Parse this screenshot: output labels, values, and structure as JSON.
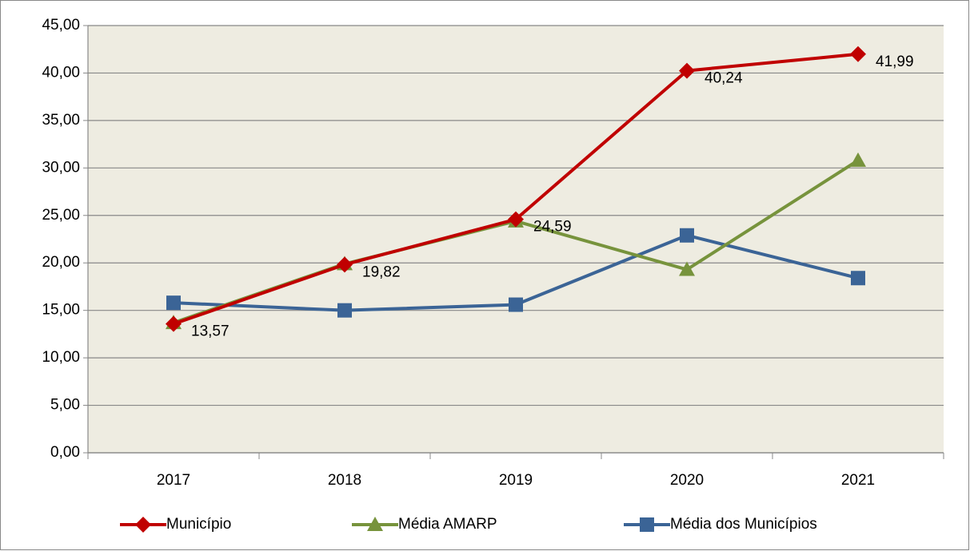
{
  "chart_data": {
    "type": "line",
    "categories": [
      "2017",
      "2018",
      "2019",
      "2020",
      "2021"
    ],
    "series": [
      {
        "name": "Município",
        "color": "#c00000",
        "marker": "diamond",
        "values": [
          13.57,
          19.82,
          24.59,
          40.24,
          41.99
        ],
        "value_labels": [
          "13,57",
          "19,82",
          "24,59",
          "40,24",
          "41,99"
        ]
      },
      {
        "name": "Média AMARP",
        "color": "#77933c",
        "marker": "triangle",
        "values": [
          13.7,
          19.9,
          24.4,
          19.3,
          30.8
        ]
      },
      {
        "name": "Média dos Municípios",
        "color": "#3b6496",
        "marker": "square",
        "values": [
          15.8,
          15.0,
          15.6,
          22.9,
          18.4
        ]
      }
    ],
    "ylim": [
      0,
      45
    ],
    "yticks": [
      {
        "value": 0,
        "label": "0,00"
      },
      {
        "value": 5,
        "label": "5,00"
      },
      {
        "value": 10,
        "label": "10,00"
      },
      {
        "value": 15,
        "label": "15,00"
      },
      {
        "value": 20,
        "label": "20,00"
      },
      {
        "value": 25,
        "label": "25,00"
      },
      {
        "value": 30,
        "label": "30,00"
      },
      {
        "value": 35,
        "label": "35,00"
      },
      {
        "value": 40,
        "label": "40,00"
      },
      {
        "value": 45,
        "label": "45,00"
      }
    ],
    "grid": true,
    "legend": "bottom",
    "plot_background": "#eeece1"
  }
}
